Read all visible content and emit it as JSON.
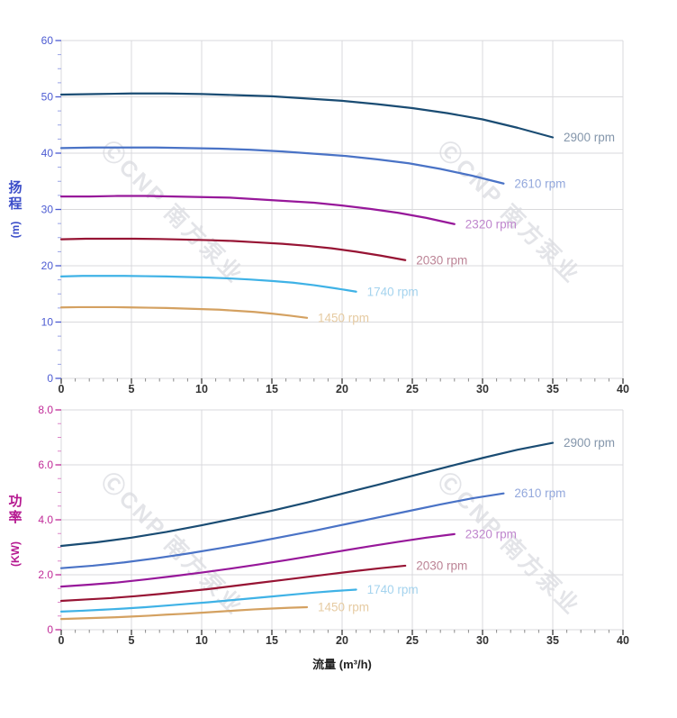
{
  "watermark_text": "ⒸCNP 南方泵业",
  "axis_titles": {
    "head_chars": "扬程",
    "head_unit": "(m)",
    "power_chars": "功率",
    "power_unit": "(KW)",
    "flow_title": "流量 (m³/h)"
  },
  "chart_data": [
    {
      "type": "line",
      "title": "",
      "xlabel": "流量 (m³/h)",
      "ylabel": "扬程 (m)",
      "xlim": [
        0,
        40
      ],
      "ylim": [
        0,
        60
      ],
      "x_major": 5,
      "x_minor": 1,
      "y_major": 10,
      "y_minor": 2.5,
      "grid": true,
      "legend_position": "curve-end-labels",
      "x_tick_labels": [
        "0",
        "5",
        "10",
        "15",
        "20",
        "25",
        "30",
        "35",
        "40"
      ],
      "y_tick_labels": [
        "0",
        "10",
        "20",
        "30",
        "40",
        "50",
        "60"
      ],
      "axis_color": "#4c5bd2",
      "axis_color_light": "#98a2e6",
      "x_tick_color": "#3b3b3b",
      "x_tick_color_light": "#8a8a8a",
      "series": [
        {
          "name": "2900 rpm",
          "color": "#1a4c73",
          "label_color": "#8496ab",
          "x": [
            0,
            2.5,
            5,
            7.5,
            10,
            12.5,
            15,
            17.5,
            20,
            22.5,
            25,
            27.5,
            30,
            32.5,
            35
          ],
          "y": [
            50.4,
            50.5,
            50.6,
            50.6,
            50.5,
            50.3,
            50.1,
            49.7,
            49.3,
            48.7,
            48.0,
            47.1,
            46.0,
            44.5,
            42.8
          ]
        },
        {
          "name": "2610 rpm",
          "color": "#4a73c6",
          "label_color": "#93a8dc",
          "x": [
            0,
            2.25,
            4.5,
            6.75,
            9,
            11.25,
            13.5,
            15.75,
            18,
            20.25,
            22.5,
            24.75,
            27,
            29.25,
            31.5
          ],
          "y": [
            40.9,
            41.0,
            41.0,
            41.0,
            40.9,
            40.8,
            40.6,
            40.3,
            39.9,
            39.5,
            38.9,
            38.2,
            37.2,
            36.0,
            34.6
          ]
        },
        {
          "name": "2320 rpm",
          "color": "#97189a",
          "label_color": "#bf86cd",
          "x": [
            0,
            2,
            4,
            6,
            8,
            10,
            12,
            14,
            16,
            18,
            20,
            22,
            24,
            26,
            28
          ],
          "y": [
            32.3,
            32.3,
            32.4,
            32.4,
            32.3,
            32.2,
            32.1,
            31.8,
            31.5,
            31.2,
            30.7,
            30.1,
            29.4,
            28.5,
            27.4
          ]
        },
        {
          "name": "2030 rpm",
          "color": "#971434",
          "label_color": "#bc8496",
          "x": [
            0,
            1.75,
            3.5,
            5.25,
            7,
            8.75,
            10.5,
            12.25,
            14,
            15.75,
            17.5,
            19.25,
            21,
            22.75,
            24.5
          ],
          "y": [
            24.7,
            24.8,
            24.8,
            24.8,
            24.75,
            24.65,
            24.55,
            24.4,
            24.15,
            23.9,
            23.55,
            23.1,
            22.5,
            21.8,
            21.0
          ]
        },
        {
          "name": "1740 rpm",
          "color": "#3fb2e6",
          "label_color": "#a4d3ee",
          "x": [
            0,
            1.5,
            3,
            4.5,
            6,
            7.5,
            9,
            10.5,
            12,
            13.5,
            15,
            16.5,
            18,
            19.5,
            21
          ],
          "y": [
            18.1,
            18.2,
            18.2,
            18.2,
            18.15,
            18.1,
            18.0,
            17.9,
            17.75,
            17.55,
            17.3,
            17.0,
            16.55,
            16.0,
            15.4
          ]
        },
        {
          "name": "1450 rpm",
          "color": "#d4a161",
          "label_color": "#e6cba2",
          "x": [
            0,
            1.25,
            2.5,
            3.75,
            5,
            6.25,
            7.5,
            8.75,
            10,
            11.25,
            12.5,
            13.75,
            15,
            16.25,
            17.5
          ],
          "y": [
            12.6,
            12.65,
            12.65,
            12.65,
            12.6,
            12.55,
            12.5,
            12.4,
            12.3,
            12.2,
            12.0,
            11.8,
            11.5,
            11.15,
            10.75
          ]
        }
      ]
    },
    {
      "type": "line",
      "title": "",
      "xlabel": "流量 (m³/h)",
      "ylabel": "功率 (KW)",
      "xlim": [
        0,
        40
      ],
      "ylim": [
        0,
        8
      ],
      "x_major": 5,
      "x_minor": 1,
      "y_major": 2,
      "y_minor": 0.5,
      "grid": true,
      "legend_position": "curve-end-labels",
      "x_tick_labels": [
        "0",
        "5",
        "10",
        "15",
        "20",
        "25",
        "30",
        "35",
        "40"
      ],
      "y_tick_labels": [
        "0",
        "2.0",
        "4.0",
        "6.0",
        "8.0"
      ],
      "axis_color": "#c02b98",
      "axis_color_light": "#dd86c8",
      "x_tick_color": "#3b3b3b",
      "x_tick_color_light": "#8a8a8a",
      "series": [
        {
          "name": "2900 rpm",
          "color": "#1a4c73",
          "label_color": "#8496ab",
          "x": [
            0,
            2.5,
            5,
            7.5,
            10,
            12.5,
            15,
            17.5,
            20,
            22.5,
            25,
            27.5,
            30,
            32.5,
            35
          ],
          "y": [
            3.05,
            3.18,
            3.35,
            3.56,
            3.8,
            4.06,
            4.33,
            4.63,
            4.95,
            5.27,
            5.6,
            5.93,
            6.25,
            6.55,
            6.8
          ]
        },
        {
          "name": "2610 rpm",
          "color": "#4a73c6",
          "label_color": "#93a8dc",
          "x": [
            0,
            2.25,
            4.5,
            6.75,
            9,
            11.25,
            13.5,
            15.75,
            18,
            20.25,
            22.5,
            24.75,
            27,
            29.25,
            31.5
          ],
          "y": [
            2.24,
            2.33,
            2.45,
            2.6,
            2.77,
            2.96,
            3.16,
            3.38,
            3.6,
            3.84,
            4.08,
            4.32,
            4.56,
            4.78,
            4.96
          ]
        },
        {
          "name": "2320 rpm",
          "color": "#97189a",
          "label_color": "#bf86cd",
          "x": [
            0,
            2,
            4,
            6,
            8,
            10,
            12,
            14,
            16,
            18,
            20,
            22,
            24,
            26,
            28
          ],
          "y": [
            1.57,
            1.64,
            1.72,
            1.83,
            1.95,
            2.08,
            2.22,
            2.37,
            2.53,
            2.7,
            2.87,
            3.04,
            3.2,
            3.35,
            3.48
          ]
        },
        {
          "name": "2030 rpm",
          "color": "#971434",
          "label_color": "#bc8496",
          "x": [
            0,
            1.75,
            3.5,
            5.25,
            7,
            8.75,
            10.5,
            12.25,
            14,
            15.75,
            17.5,
            19.25,
            21,
            22.75,
            24.5
          ],
          "y": [
            1.05,
            1.1,
            1.15,
            1.22,
            1.3,
            1.39,
            1.48,
            1.59,
            1.7,
            1.81,
            1.92,
            2.03,
            2.14,
            2.24,
            2.33
          ]
        },
        {
          "name": "1740 rpm",
          "color": "#3fb2e6",
          "label_color": "#a4d3ee",
          "x": [
            0,
            1.5,
            3,
            4.5,
            6,
            7.5,
            9,
            10.5,
            12,
            13.5,
            15,
            16.5,
            18,
            19.5,
            21
          ],
          "y": [
            0.66,
            0.69,
            0.73,
            0.77,
            0.82,
            0.88,
            0.94,
            1.0,
            1.07,
            1.14,
            1.21,
            1.28,
            1.35,
            1.41,
            1.46
          ]
        },
        {
          "name": "1450 rpm",
          "color": "#d4a161",
          "label_color": "#e6cba2",
          "x": [
            0,
            1.25,
            2.5,
            3.75,
            5,
            6.25,
            7.5,
            8.75,
            10,
            11.25,
            12.5,
            13.75,
            15,
            16.25,
            17.5
          ],
          "y": [
            0.39,
            0.41,
            0.43,
            0.45,
            0.48,
            0.51,
            0.55,
            0.58,
            0.62,
            0.66,
            0.7,
            0.74,
            0.77,
            0.8,
            0.82
          ]
        }
      ]
    }
  ]
}
